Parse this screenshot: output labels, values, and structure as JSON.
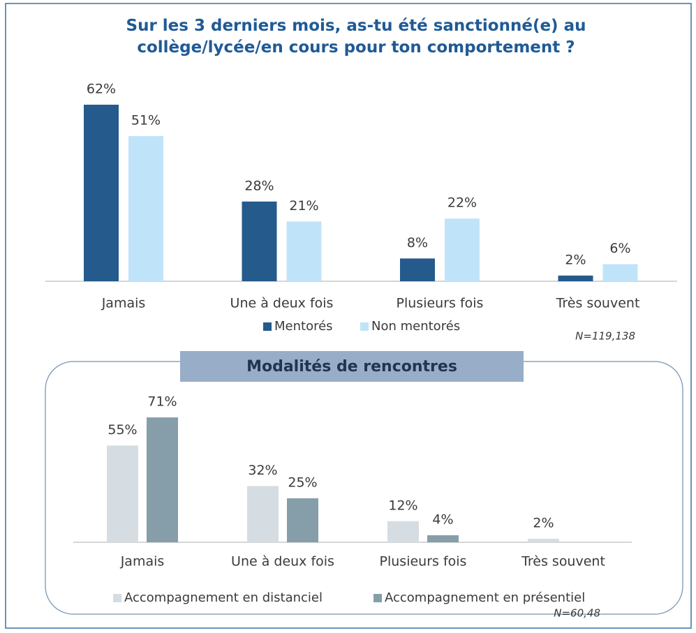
{
  "chart_data": [
    {
      "type": "bar",
      "title": "Sur les 3 derniers mois, as-tu été sanctionné(e) au collège/lycée/en cours pour ton comportement ?",
      "categories": [
        "Jamais",
        "Une à deux fois",
        "Plusieurs fois",
        "Très souvent"
      ],
      "series": [
        {
          "name": "Mentorés",
          "color": "#255a8c",
          "values": [
            62,
            28,
            8,
            2
          ],
          "value_labels": [
            "62%",
            "28%",
            "8%",
            "2%"
          ]
        },
        {
          "name": "Non mentorés",
          "color": "#bfe4fa",
          "values": [
            51,
            21,
            22,
            6
          ],
          "value_labels": [
            "51%",
            "21%",
            "22%",
            "6%"
          ]
        }
      ],
      "annotation": "N=119,138"
    },
    {
      "type": "bar",
      "title": "Modalités de rencontres",
      "categories": [
        "Jamais",
        "Une à deux fois",
        "Plusieurs fois",
        "Très souvent"
      ],
      "series": [
        {
          "name": "Accompagnement en distanciel",
          "color": "#d5dde2",
          "values": [
            55,
            32,
            12,
            2
          ],
          "value_labels": [
            "55%",
            "32%",
            "12%",
            "2%"
          ]
        },
        {
          "name": "Accompagnement en présentiel",
          "color": "#869ea9",
          "values": [
            71,
            25,
            4,
            null
          ],
          "value_labels": [
            "71%",
            "25%",
            "4%",
            null
          ]
        }
      ],
      "annotation": "N=60,48"
    }
  ]
}
